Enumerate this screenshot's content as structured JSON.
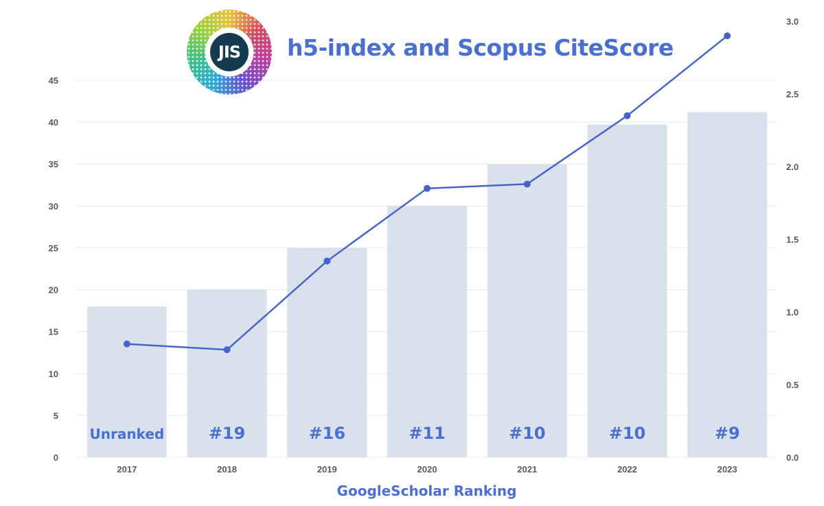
{
  "header": {
    "title": "h5-index and Scopus CiteScore",
    "logo_text": "JIS"
  },
  "chart_data": {
    "type": "bar",
    "title": "h5-index and Scopus CiteScore",
    "xlabel": "GoogleScholar Ranking",
    "ylabel": "",
    "y2label": "",
    "categories": [
      "2017",
      "2018",
      "2019",
      "2020",
      "2021",
      "2022",
      "2023"
    ],
    "series": [
      {
        "type": "bar",
        "axis": "left",
        "values": [
          18,
          20,
          25,
          30,
          35,
          39.7,
          41.2
        ],
        "color": "#d9e2ec"
      },
      {
        "type": "line",
        "axis": "right",
        "values": [
          0.78,
          0.74,
          1.35,
          1.85,
          1.88,
          2.35,
          2.9
        ],
        "color": "#4563c9"
      }
    ],
    "bar_labels": [
      "Unranked",
      "#19",
      "#16",
      "#11",
      "#10",
      "#10",
      "#9"
    ],
    "ylim": [
      0,
      45
    ],
    "yticks": [
      0,
      5,
      10,
      15,
      20,
      25,
      30,
      35,
      40,
      45
    ],
    "y2lim": [
      0,
      3.0
    ],
    "y2ticks": [
      "0.0",
      "0.5",
      "1.0",
      "1.5",
      "2.0",
      "2.5",
      "3.0"
    ],
    "grid": true,
    "colors": {
      "bar": "#d9e2ec",
      "line": "#4563c9",
      "label": "#4a6fcf",
      "grid": "#e4ebf3",
      "tick": "#5a5a5a"
    }
  }
}
